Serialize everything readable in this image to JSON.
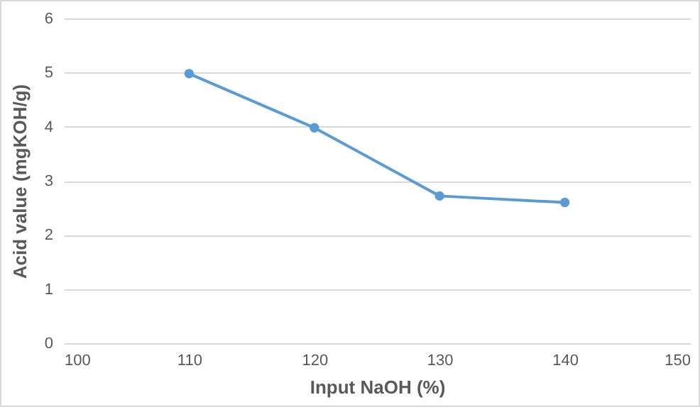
{
  "chart_data": {
    "type": "line",
    "xlabel": "Input NaOH (%)",
    "ylabel": "Acid value (mgKOH/g)",
    "x": [
      110,
      120,
      130,
      140
    ],
    "series": [
      {
        "color": "#5b9bd5",
        "values": [
          4.98,
          3.98,
          2.72,
          2.6
        ]
      }
    ],
    "xlim": [
      100,
      150
    ],
    "xticks": [
      100,
      110,
      120,
      130,
      140,
      150
    ],
    "ylim": [
      0,
      6
    ],
    "yticks": [
      0,
      1,
      2,
      3,
      4,
      5,
      6
    ],
    "grid": "y",
    "marker": "circle",
    "line_style": "solid"
  }
}
